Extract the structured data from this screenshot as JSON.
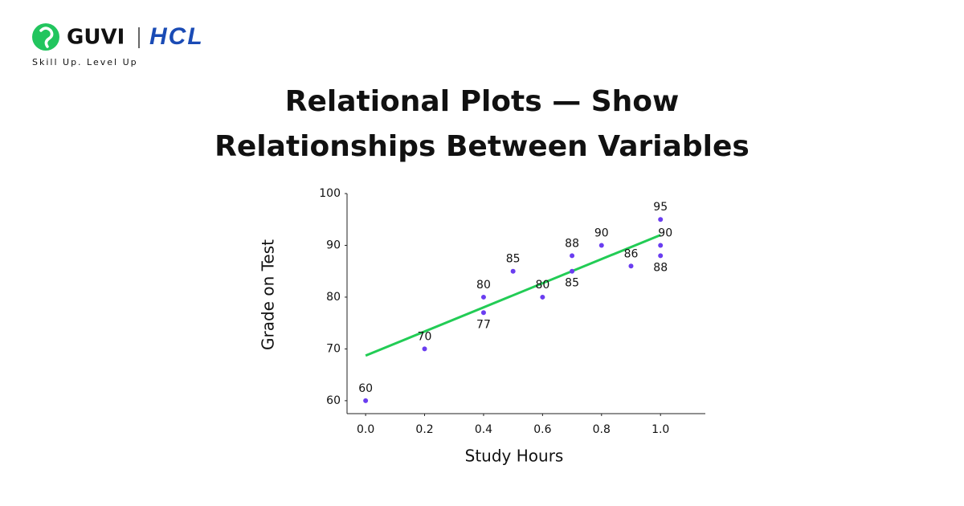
{
  "header": {
    "brand": "GUVI",
    "partner": "HCL",
    "tagline": "Skill Up. Level Up"
  },
  "chart_data": {
    "type": "scatter",
    "title": [
      "Relational Plots — Show",
      "Relationships Between Variables"
    ],
    "x_label": "Study Hours",
    "y_label": "Grade on Test",
    "x": [
      0.0,
      0.2,
      0.4,
      0.4,
      0.5,
      0.6,
      0.7,
      0.7,
      0.8,
      0.9,
      1.0,
      1.0,
      1.0
    ],
    "values": [
      60,
      70,
      80,
      77,
      85,
      80,
      88,
      85,
      90,
      86,
      95,
      90,
      88
    ],
    "color": "#6a3df0",
    "trendline": {
      "x": [
        0,
        1
      ],
      "values": [
        68.7,
        92
      ],
      "color": "#22cc55"
    },
    "xlim": [
      -0.063,
      1.152
    ],
    "ylim": [
      57.5,
      100
    ],
    "xticks": [
      {
        "value": 0,
        "label": "0.0"
      },
      {
        "value": 0.2,
        "label": "0.2"
      },
      {
        "value": 0.4,
        "label": "0.4"
      },
      {
        "value": 0.6,
        "label": "0.6"
      },
      {
        "value": 0.8,
        "label": "0.8"
      },
      {
        "value": 1,
        "label": "1.0"
      }
    ],
    "yticks": [
      60,
      70,
      80,
      90,
      100
    ],
    "grid": false
  }
}
